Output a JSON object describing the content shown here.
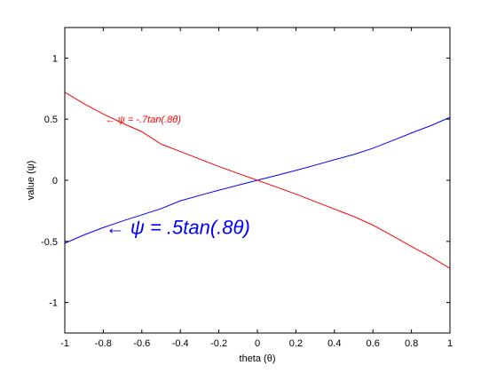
{
  "chart_data": {
    "type": "line",
    "xlabel": "theta (θ)",
    "ylabel": "value (ψ)",
    "xlim": [
      -1,
      1
    ],
    "ylim": [
      -1.25,
      1.25
    ],
    "xticks": [
      -1,
      -0.8,
      -0.6,
      -0.4,
      -0.2,
      0,
      0.2,
      0.4,
      0.6,
      0.8,
      1
    ],
    "xtick_labels": [
      "-1",
      "-0.8",
      "-0.6",
      "-0.4",
      "-0.2",
      "0",
      "0.2",
      "0.4",
      "0.6",
      "0.8",
      "1"
    ],
    "yticks": [
      -1,
      -0.5,
      0,
      0.5,
      1
    ],
    "ytick_labels": [
      "-1",
      "-0.5",
      "0",
      "0.5",
      "1"
    ],
    "grid": false,
    "series": [
      {
        "color": "#0000ff",
        "x": [
          -1,
          -0.9,
          -0.8,
          -0.7,
          -0.6,
          -0.5,
          -0.4,
          -0.3,
          -0.2,
          -0.1,
          0,
          0.1,
          0.2,
          0.3,
          0.4,
          0.5,
          0.6,
          0.7,
          0.8,
          0.9,
          1
        ],
        "y": [
          -0.515,
          -0.447,
          -0.387,
          -0.333,
          -0.283,
          -0.232,
          -0.168,
          -0.124,
          -0.081,
          -0.04,
          0,
          0.04,
          0.081,
          0.124,
          0.168,
          0.211,
          0.262,
          0.324,
          0.387,
          0.447,
          0.515
        ]
      },
      {
        "color": "#ff0000",
        "x": [
          -1,
          -0.9,
          -0.8,
          -0.7,
          -0.6,
          -0.5,
          -0.4,
          -0.3,
          -0.2,
          -0.1,
          0,
          0.1,
          0.2,
          0.3,
          0.4,
          0.5,
          0.6,
          0.7,
          0.8,
          0.9,
          1
        ],
        "y": [
          0.721,
          0.626,
          0.542,
          0.467,
          0.398,
          0.296,
          0.236,
          0.174,
          0.113,
          0.056,
          0,
          -0.056,
          -0.113,
          -0.174,
          -0.236,
          -0.296,
          -0.367,
          -0.453,
          -0.542,
          -0.626,
          -0.721
        ]
      }
    ],
    "annotations": [
      {
        "text": "← ψ = .5tan(.8θ)",
        "color": "#0000ff",
        "x": -0.78,
        "y": -0.38
      },
      {
        "text": "← ψ = -.7tan(.8θ)",
        "color": "#ff0000",
        "x": -0.78,
        "y": 0.5
      }
    ]
  }
}
